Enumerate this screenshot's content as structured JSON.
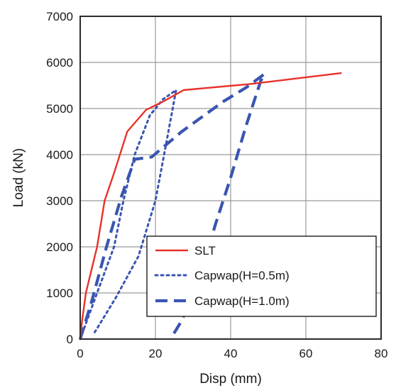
{
  "chart_data": {
    "type": "line",
    "title": "",
    "xlabel": "Disp (mm)",
    "ylabel": "Load (kN)",
    "xlim": [
      0,
      80
    ],
    "ylim": [
      0,
      7000
    ],
    "x_ticks": [
      "0",
      "20",
      "40",
      "60",
      "80"
    ],
    "y_ticks": [
      "0",
      "1000",
      "2000",
      "3000",
      "4000",
      "5000",
      "6000",
      "7000"
    ],
    "grid": true,
    "legend_position": "bottom-right",
    "series": [
      {
        "name": "SLT",
        "color": "#e8312a",
        "style": "solid",
        "points": [
          [
            0,
            0
          ],
          [
            0.5,
            400
          ],
          [
            1.5,
            1000
          ],
          [
            4.5,
            2000
          ],
          [
            6.5,
            3000
          ],
          [
            9,
            3600
          ],
          [
            12.5,
            4500
          ],
          [
            17.5,
            4970
          ],
          [
            22,
            5150
          ],
          [
            27.5,
            5400
          ],
          [
            45,
            5530
          ],
          [
            69.5,
            5770
          ]
        ]
      },
      {
        "name": "Capwap(H=0.5m)",
        "color": "#3a55b0",
        "style": "dotted",
        "points": [
          [
            0,
            0
          ],
          [
            4.5,
            1000
          ],
          [
            9,
            2000
          ],
          [
            11.5,
            3000
          ],
          [
            14.5,
            4000
          ],
          [
            18.5,
            4850
          ],
          [
            22,
            5200
          ],
          [
            25.5,
            5400
          ],
          [
            23,
            4300
          ],
          [
            20,
            3000
          ],
          [
            15.5,
            1800
          ],
          [
            9.5,
            900
          ],
          [
            3.5,
            100
          ]
        ]
      },
      {
        "name": "Capwap(H=1.0m)",
        "color": "#3a55b0",
        "style": "dashed",
        "points": [
          [
            0,
            0
          ],
          [
            3,
            800
          ],
          [
            7,
            2000
          ],
          [
            11,
            3100
          ],
          [
            14.5,
            3900
          ],
          [
            19,
            3950
          ],
          [
            27,
            4500
          ],
          [
            38,
            5150
          ],
          [
            44,
            5450
          ],
          [
            49,
            5750
          ],
          [
            48,
            5600
          ],
          [
            44,
            4600
          ],
          [
            40,
            3500
          ],
          [
            36,
            2500
          ],
          [
            32,
            1400
          ],
          [
            27,
            400
          ],
          [
            24,
            0
          ]
        ]
      }
    ]
  }
}
